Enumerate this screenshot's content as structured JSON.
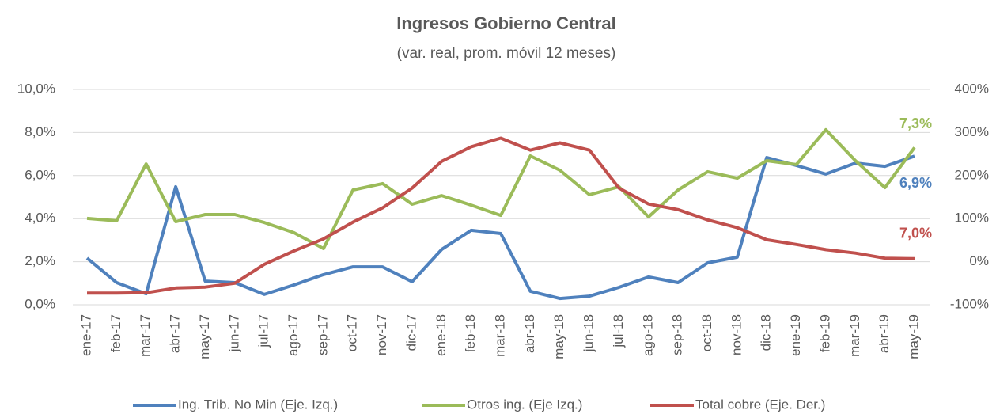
{
  "chart_data": {
    "type": "line",
    "title": "Ingresos Gobierno Central",
    "subtitle": "(var. real, prom. móvil 12 meses)",
    "categories": [
      "ene-17",
      "feb-17",
      "mar-17",
      "abr-17",
      "may-17",
      "jun-17",
      "jul-17",
      "ago-17",
      "sep-17",
      "oct-17",
      "nov-17",
      "dic-17",
      "ene-18",
      "feb-18",
      "mar-18",
      "abr-18",
      "may-18",
      "jun-18",
      "jul-18",
      "ago-18",
      "sep-18",
      "oct-18",
      "nov-18",
      "dic-18",
      "ene-19",
      "feb-19",
      "mar-19",
      "abr-19",
      "may-19"
    ],
    "series": [
      {
        "name": "Ing. Trib. No Min (Eje. Izq.)",
        "color": "#4f81bd",
        "values": [
          2.17,
          1.03,
          0.51,
          5.48,
          1.1,
          1.03,
          0.48,
          0.92,
          1.4,
          1.76,
          1.76,
          1.07,
          2.57,
          3.46,
          3.31,
          0.63,
          0.29,
          0.4,
          0.81,
          1.29,
          1.03,
          1.95,
          2.21,
          6.84,
          6.47,
          6.07,
          6.58,
          6.43,
          6.9
        ],
        "value_labels": [
          null,
          null,
          null,
          null,
          null,
          null,
          null,
          null,
          null,
          null,
          null,
          null,
          null,
          null,
          null,
          null,
          null,
          null,
          null,
          null,
          null,
          null,
          null,
          null,
          null,
          null,
          null,
          null,
          "6,9%"
        ]
      },
      {
        "name": "Otros ing. (Eje Izq.)",
        "color": "#9bbb59",
        "values": [
          4.01,
          3.9,
          6.54,
          3.86,
          4.19,
          4.19,
          3.82,
          3.35,
          2.61,
          5.33,
          5.63,
          4.67,
          5.07,
          4.63,
          4.15,
          6.91,
          6.25,
          5.11,
          5.48,
          4.08,
          5.33,
          6.18,
          5.88,
          6.69,
          6.51,
          8.13,
          6.69,
          5.44,
          7.3
        ],
        "value_labels": [
          null,
          null,
          null,
          null,
          null,
          null,
          null,
          null,
          null,
          null,
          null,
          null,
          null,
          null,
          null,
          null,
          null,
          null,
          null,
          null,
          null,
          null,
          null,
          null,
          null,
          null,
          null,
          null,
          "7,3%"
        ]
      },
      {
        "name": "Total cobre (Eje. Der.)",
        "color": "#c0504d",
        "axis": "y2",
        "values": [
          -73,
          -73,
          -72,
          -61,
          -59,
          -50,
          -6,
          25,
          53,
          92,
          125,
          171,
          233,
          267,
          287,
          259,
          276,
          259,
          171,
          134,
          121,
          97,
          79,
          51,
          40,
          28,
          20,
          8,
          7
        ],
        "value_labels": [
          null,
          null,
          null,
          null,
          null,
          null,
          null,
          null,
          null,
          null,
          null,
          null,
          null,
          null,
          null,
          null,
          null,
          null,
          null,
          null,
          null,
          null,
          null,
          null,
          null,
          null,
          null,
          null,
          "7,0%"
        ]
      }
    ],
    "ylim": [
      0,
      10
    ],
    "yticks": [
      {
        "value": 0,
        "label": "0,0%"
      },
      {
        "value": 2,
        "label": "2,0%"
      },
      {
        "value": 4,
        "label": "4,0%"
      },
      {
        "value": 6,
        "label": "6,0%"
      },
      {
        "value": 8,
        "label": "8,0%"
      },
      {
        "value": 10,
        "label": "10,0%"
      }
    ],
    "y2lim": [
      -100,
      400
    ],
    "y2ticks": [
      {
        "value": -100,
        "label": "-100%"
      },
      {
        "value": 0,
        "label": "0%"
      },
      {
        "value": 100,
        "label": "100%"
      },
      {
        "value": 200,
        "label": "200%"
      },
      {
        "value": 300,
        "label": "300%"
      },
      {
        "value": 400,
        "label": "400%"
      }
    ],
    "grid": true,
    "legend": "bottom"
  }
}
